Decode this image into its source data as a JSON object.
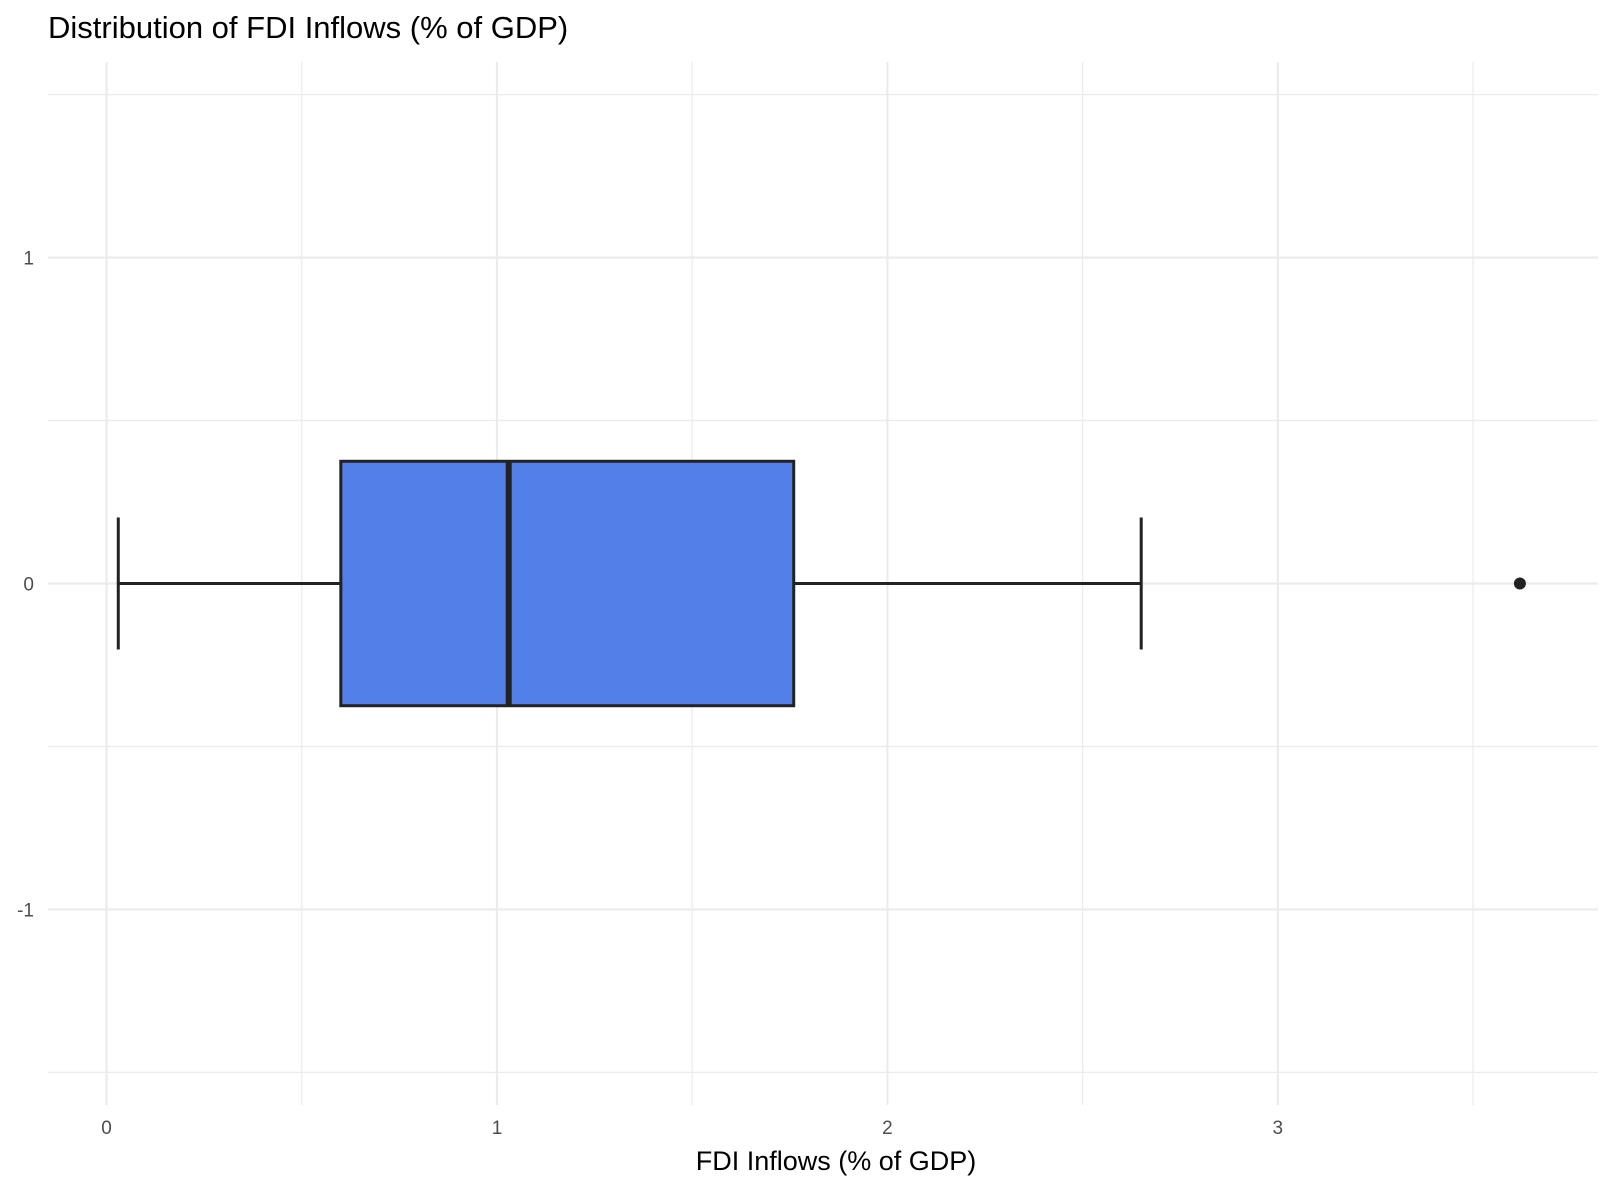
{
  "chart_data": {
    "type": "boxplot",
    "title": "Distribution of FDI Inflows (% of GDP)",
    "xlabel": "FDI Inflows (% of GDP)",
    "ylabel": "",
    "orientation": "horizontal",
    "xlim": [
      -0.15,
      3.82
    ],
    "ylim": [
      -1.6,
      1.6
    ],
    "x_ticks": [
      0,
      1,
      2,
      3
    ],
    "x_tick_labels": [
      "0",
      "1",
      "2",
      "3"
    ],
    "y_ticks": [
      -1,
      0,
      1
    ],
    "y_tick_labels": [
      "-1",
      "0",
      "1"
    ],
    "grid": true,
    "box": {
      "position": 0,
      "half_height": 0.375,
      "whisker_low": 0.03,
      "q1": 0.6,
      "median": 1.03,
      "q3": 1.76,
      "whisker_high": 2.65,
      "outliers": [
        3.62
      ],
      "fill": "#527fe8",
      "stroke": "#222222"
    }
  }
}
